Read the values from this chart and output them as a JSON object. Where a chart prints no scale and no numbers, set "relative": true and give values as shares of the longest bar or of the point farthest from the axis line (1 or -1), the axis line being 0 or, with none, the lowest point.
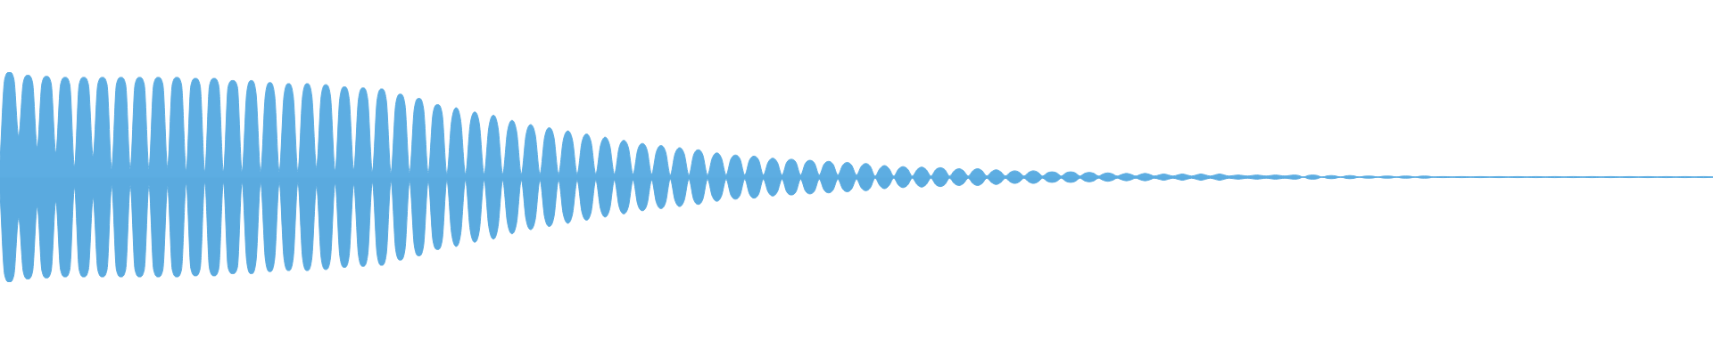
{
  "chart_data": {
    "type": "area",
    "relative": true,
    "categories": [
      null,
      null,
      null,
      null,
      null,
      null,
      null,
      null,
      null,
      null,
      null,
      null,
      null,
      null,
      null,
      null,
      null,
      null,
      null,
      null,
      null,
      null,
      null,
      null,
      null,
      null,
      null,
      null,
      null,
      null,
      null,
      null,
      null,
      null,
      null,
      null,
      null,
      null,
      null,
      null,
      null,
      null,
      null,
      null,
      null,
      null,
      null,
      null,
      null,
      null,
      null,
      null,
      null,
      null,
      null,
      null,
      null,
      null,
      null,
      null,
      null,
      null,
      null,
      null,
      null,
      null,
      null,
      null,
      null,
      null,
      null,
      null,
      null,
      null,
      null,
      null,
      null,
      null,
      null,
      null,
      null,
      null,
      null,
      null,
      null,
      null,
      null,
      null,
      null,
      null,
      null,
      null,
      null,
      null,
      null,
      null,
      null,
      null,
      null,
      null,
      null,
      null,
      null,
      null,
      null,
      null,
      null,
      null,
      null,
      null,
      null,
      null,
      null,
      null,
      null,
      null,
      null,
      null,
      null,
      null,
      null,
      null,
      null,
      null,
      null,
      null,
      null,
      null,
      null,
      null,
      null,
      null,
      null,
      null,
      null,
      null,
      null,
      null,
      null,
      null,
      null,
      null,
      null,
      null,
      null,
      null,
      null,
      null,
      null,
      null,
      null,
      null,
      null,
      null,
      null,
      null,
      null,
      null,
      null,
      null,
      null,
      null,
      null,
      null,
      null,
      null,
      null,
      null,
      null,
      null,
      null,
      null,
      null,
      null,
      null,
      null,
      null,
      null,
      null,
      null,
      null,
      null,
      null,
      null,
      null,
      null,
      null,
      null,
      null,
      null,
      null,
      null,
      null,
      null,
      null,
      null,
      null,
      null,
      null,
      null,
      null,
      null,
      null,
      null,
      null,
      null,
      null,
      null,
      null,
      null,
      null,
      null,
      null,
      null,
      null,
      null,
      null,
      null,
      null,
      null,
      null,
      null,
      null,
      null,
      null,
      null,
      null,
      null,
      null,
      null,
      null,
      null,
      null,
      null,
      null,
      null,
      null,
      null,
      null,
      null,
      null,
      null,
      null,
      null,
      null,
      null,
      null,
      null,
      null,
      null,
      null,
      null,
      null,
      null,
      null,
      null,
      null,
      null,
      null,
      null,
      null,
      null,
      null,
      null,
      null,
      null,
      null,
      null,
      null,
      null,
      null,
      null,
      null,
      null,
      null,
      null,
      null,
      null,
      null,
      null,
      null,
      null,
      null,
      null,
      null,
      null,
      null,
      null,
      null,
      null,
      null,
      null,
      null,
      null,
      null,
      null,
      null,
      null,
      null,
      null,
      null,
      null,
      null,
      null,
      null,
      null,
      null,
      null,
      null,
      null,
      null,
      null,
      null,
      null,
      null,
      null,
      null,
      null,
      null,
      null,
      null,
      null,
      null,
      null,
      null,
      null,
      null,
      null,
      null,
      null,
      null,
      null,
      null,
      null,
      null,
      null,
      null,
      null,
      null,
      null,
      null,
      null,
      null,
      null,
      null,
      null,
      null,
      null,
      null,
      null,
      null,
      null,
      null,
      null,
      null,
      null,
      null,
      null,
      null,
      null,
      null,
      null,
      null,
      null,
      null,
      null,
      null,
      null,
      null
    ],
    "ref_lines": [
      {
        "axis": "y",
        "value": 0,
        "color": "#5dade2"
      }
    ],
    "series": [
      {
        "color": "#5dade2",
        "values": [
          0.15,
          0.93,
          1.0,
          0.93,
          0.39,
          0.9,
          0.97,
          0.9,
          0.28,
          0.89,
          0.96,
          0.89,
          0.23,
          0.88,
          0.95,
          0.88,
          0.1,
          0.88,
          0.95,
          0.88,
          0.2,
          0.88,
          0.95,
          0.88,
          0.08,
          0.88,
          0.95,
          0.88,
          0.08,
          0.88,
          0.95,
          0.88,
          0.08,
          0.88,
          0.95,
          0.88,
          0.09,
          0.88,
          0.95,
          0.88,
          0.06,
          0.87,
          0.94,
          0.87,
          0.05,
          0.87,
          0.94,
          0.87,
          0.05,
          0.86,
          0.92,
          0.86,
          0.05,
          0.8,
          0.92,
          0.8,
          0.05,
          0.78,
          0.9,
          0.78,
          0.05,
          0.77,
          0.89,
          0.77,
          0.05,
          0.77,
          0.89,
          0.77,
          0.09,
          0.77,
          0.88,
          0.77,
          0.06,
          0.75,
          0.86,
          0.75,
          0.07,
          0.74,
          0.85,
          0.74,
          0.05,
          0.73,
          0.84,
          0.73,
          0.04,
          0.69,
          0.79,
          0.69,
          0.04,
          0.65,
          0.75,
          0.65,
          0.04,
          0.6,
          0.69,
          0.6,
          0.03,
          0.53,
          0.66,
          0.53,
          0.03,
          0.5,
          0.62,
          0.5,
          0.03,
          0.47,
          0.59,
          0.47,
          0.03,
          0.43,
          0.54,
          0.43,
          0.03,
          0.4,
          0.5,
          0.4,
          0.03,
          0.38,
          0.47,
          0.38,
          0.03,
          0.35,
          0.44,
          0.35,
          0.03,
          0.33,
          0.41,
          0.33,
          0.03,
          0.3,
          0.38,
          0.3,
          0.03,
          0.28,
          0.35,
          0.28,
          0.03,
          0.26,
          0.32,
          0.26,
          0.03,
          0.24,
          0.3,
          0.24,
          0.02,
          0.22,
          0.28,
          0.22,
          0.02,
          0.21,
          0.26,
          0.21,
          0.02,
          0.18,
          0.23,
          0.18,
          0.02,
          0.17,
          0.21,
          0.17,
          0.02,
          0.16,
          0.2,
          0.16,
          0.02,
          0.14,
          0.18,
          0.14,
          0.02,
          0.14,
          0.17,
          0.14,
          0.02,
          0.13,
          0.16,
          0.13,
          0.02,
          0.12,
          0.15,
          0.12,
          0.02,
          0.11,
          0.14,
          0.11,
          0.02,
          0.1,
          0.13,
          0.1,
          0.01,
          0.08,
          0.11,
          0.08,
          0.01,
          0.075,
          0.1,
          0.075,
          0.01,
          0.07,
          0.095,
          0.07,
          0.01,
          0.07,
          0.09,
          0.07,
          0.01,
          0.06,
          0.08,
          0.06,
          0.01,
          0.06,
          0.08,
          0.06,
          0.01,
          0.05,
          0.07,
          0.05,
          0.01,
          0.045,
          0.06,
          0.045,
          0.01,
          0.045,
          0.06,
          0.045,
          0.01,
          0.04,
          0.05,
          0.04,
          0.01,
          0.04,
          0.05,
          0.04,
          0.01,
          0.035,
          0.045,
          0.035,
          0.01,
          0.03,
          0.04,
          0.03,
          0.01,
          0.025,
          0.035,
          0.025,
          0.01,
          0.025,
          0.035,
          0.025,
          0.01,
          0.02,
          0.03,
          0.02,
          0.01,
          0.02,
          0.03,
          0.02,
          0.01,
          0.02,
          0.03,
          0.02,
          0.01,
          0.02,
          0.03,
          0.02,
          0.01,
          0.015,
          0.02,
          0.015,
          0.01,
          0.015,
          0.02,
          0.015,
          0.01,
          0.015,
          0.02,
          0.015,
          0.01,
          0.015,
          0.02,
          0.015,
          0,
          0.015,
          0.02,
          0.015,
          0,
          0.01,
          0.015,
          0.01,
          0,
          0.01,
          0.015,
          0.01,
          0,
          0.008,
          0.01,
          0.008,
          0,
          0.008,
          0.01,
          0.008,
          0,
          0.008,
          0.01,
          0.008,
          0,
          0.008,
          0.01,
          0.008,
          0,
          0.004,
          0.005,
          0.004,
          0,
          0.004,
          0.005,
          0.004,
          0,
          0.004,
          0.005,
          0.004,
          0,
          0.004,
          0.005,
          0.004,
          0,
          0.004,
          0.005,
          0.004,
          0,
          0.004,
          0.005,
          0.004,
          0,
          0.004,
          0.005,
          0.004,
          0,
          0.004,
          0.005,
          0.004,
          0,
          0.004,
          0.005,
          0.004,
          0,
          0.004,
          0.005,
          0.004,
          0,
          0.004,
          0.005,
          0.004,
          0,
          0.004,
          0.005,
          0.004,
          0,
          0.004,
          0.005,
          0.004,
          0,
          0.004,
          0.005,
          0.004,
          0,
          0.004,
          0.005,
          0.004,
          0
        ]
      },
      {
        "color": "#5aaadf",
        "values": [
          -0.15,
          -0.93,
          -1.0,
          -0.93,
          -0.39,
          -0.9,
          -0.97,
          -0.9,
          -0.28,
          -0.89,
          -0.96,
          -0.89,
          -0.23,
          -0.88,
          -0.95,
          -0.88,
          -0.1,
          -0.88,
          -0.95,
          -0.88,
          -0.2,
          -0.88,
          -0.95,
          -0.88,
          -0.08,
          -0.88,
          -0.95,
          -0.88,
          -0.08,
          -0.88,
          -0.95,
          -0.88,
          -0.08,
          -0.88,
          -0.95,
          -0.88,
          -0.09,
          -0.88,
          -0.95,
          -0.88,
          -0.06,
          -0.87,
          -0.94,
          -0.87,
          -0.05,
          -0.87,
          -0.94,
          -0.87,
          -0.05,
          -0.86,
          -0.92,
          -0.86,
          -0.05,
          -0.8,
          -0.92,
          -0.8,
          -0.05,
          -0.78,
          -0.9,
          -0.78,
          -0.05,
          -0.77,
          -0.89,
          -0.77,
          -0.05,
          -0.77,
          -0.89,
          -0.77,
          -0.09,
          -0.77,
          -0.88,
          -0.77,
          -0.06,
          -0.75,
          -0.86,
          -0.75,
          -0.07,
          -0.74,
          -0.85,
          -0.74,
          -0.05,
          -0.73,
          -0.84,
          -0.73,
          -0.04,
          -0.69,
          -0.79,
          -0.69,
          -0.04,
          -0.65,
          -0.75,
          -0.65,
          -0.04,
          -0.6,
          -0.69,
          -0.6,
          -0.03,
          -0.53,
          -0.66,
          -0.53,
          -0.03,
          -0.5,
          -0.62,
          -0.5,
          -0.03,
          -0.47,
          -0.59,
          -0.47,
          -0.03,
          -0.43,
          -0.54,
          -0.43,
          -0.03,
          -0.4,
          -0.5,
          -0.4,
          -0.03,
          -0.38,
          -0.47,
          -0.38,
          -0.03,
          -0.35,
          -0.44,
          -0.35,
          -0.03,
          -0.33,
          -0.41,
          -0.33,
          -0.03,
          -0.3,
          -0.38,
          -0.3,
          -0.03,
          -0.28,
          -0.35,
          -0.28,
          -0.03,
          -0.26,
          -0.32,
          -0.26,
          -0.03,
          -0.24,
          -0.3,
          -0.24,
          -0.02,
          -0.22,
          -0.28,
          -0.22,
          -0.02,
          -0.21,
          -0.26,
          -0.21,
          -0.02,
          -0.18,
          -0.23,
          -0.18,
          -0.02,
          -0.17,
          -0.21,
          -0.17,
          -0.02,
          -0.16,
          -0.2,
          -0.16,
          -0.02,
          -0.14,
          -0.18,
          -0.14,
          -0.02,
          -0.14,
          -0.17,
          -0.14,
          -0.02,
          -0.13,
          -0.16,
          -0.13,
          -0.02,
          -0.12,
          -0.15,
          -0.12,
          -0.02,
          -0.11,
          -0.14,
          -0.11,
          -0.02,
          -0.1,
          -0.13,
          -0.1,
          -0.01,
          -0.08,
          -0.11,
          -0.08,
          -0.01,
          -0.075,
          -0.1,
          -0.075,
          -0.01,
          -0.07,
          -0.095,
          -0.07,
          -0.01,
          -0.07,
          -0.09,
          -0.07,
          -0.01,
          -0.06,
          -0.08,
          -0.06,
          -0.01,
          -0.06,
          -0.08,
          -0.06,
          -0.01,
          -0.05,
          -0.07,
          -0.05,
          -0.01,
          -0.045,
          -0.06,
          -0.045,
          -0.01,
          -0.045,
          -0.06,
          -0.045,
          -0.01,
          -0.04,
          -0.05,
          -0.04,
          -0.01,
          -0.04,
          -0.05,
          -0.04,
          -0.01,
          -0.035,
          -0.045,
          -0.035,
          -0.01,
          -0.03,
          -0.04,
          -0.03,
          -0.01,
          -0.025,
          -0.035,
          -0.025,
          -0.01,
          -0.025,
          -0.035,
          -0.025,
          -0.01,
          -0.02,
          -0.03,
          -0.02,
          -0.01,
          -0.02,
          -0.03,
          -0.02,
          -0.01,
          -0.02,
          -0.03,
          -0.02,
          -0.01,
          -0.02,
          -0.03,
          -0.02,
          -0.01,
          -0.015,
          -0.02,
          -0.015,
          -0.01,
          -0.015,
          -0.02,
          -0.015,
          -0.01,
          -0.015,
          -0.02,
          -0.015,
          -0.01,
          -0.015,
          -0.02,
          -0.015,
          0,
          -0.015,
          -0.02,
          -0.015,
          0,
          -0.01,
          -0.015,
          -0.01,
          0,
          -0.01,
          -0.015,
          -0.01,
          0,
          -0.008,
          -0.01,
          -0.008,
          0,
          -0.008,
          -0.01,
          -0.008,
          0,
          -0.008,
          -0.01,
          -0.008,
          0,
          -0.008,
          -0.01,
          -0.008,
          0,
          -0.004,
          -0.005,
          -0.004,
          0,
          -0.004,
          -0.005,
          -0.004,
          0,
          -0.004,
          -0.005,
          -0.004,
          0,
          -0.004,
          -0.005,
          -0.004,
          0,
          -0.004,
          -0.005,
          -0.004,
          0,
          -0.004,
          -0.005,
          -0.004,
          0,
          -0.004,
          -0.005,
          -0.004,
          0,
          -0.004,
          -0.005,
          -0.004,
          0,
          -0.004,
          -0.005,
          -0.004,
          0,
          -0.004,
          -0.005,
          -0.004,
          0,
          -0.004,
          -0.005,
          -0.004,
          0,
          -0.004,
          -0.005,
          -0.004,
          0,
          -0.004,
          -0.005,
          -0.004,
          0,
          -0.004,
          -0.005,
          -0.004,
          0,
          -0.004,
          -0.005,
          -0.004,
          0
        ]
      }
    ]
  }
}
